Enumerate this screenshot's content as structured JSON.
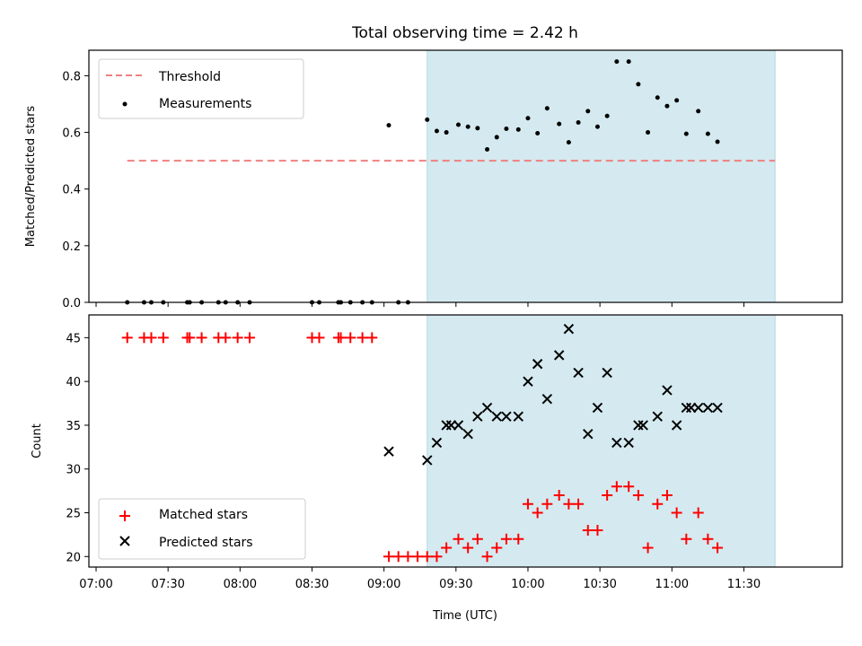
{
  "chart_data": [
    {
      "type": "scatter",
      "title": "Total observing time = 2.42 h",
      "ylabel": "Matched/Predicted stars",
      "xlabel": "",
      "ylim": [
        0,
        0.89
      ],
      "yticks": [
        "0.0",
        "0.2",
        "0.4",
        "0.6",
        "0.8"
      ],
      "observing_window": [
        "09:18",
        "11:43"
      ],
      "highlight_color": "#d4eaf0",
      "legend_position": "upper-left",
      "threshold": {
        "name": "Threshold",
        "value": 0.5,
        "x_range": [
          "07:13",
          "11:43"
        ],
        "color": "#f08080"
      },
      "series": [
        {
          "name": "Measurements",
          "color": "#000000",
          "marker": "dot",
          "points": [
            [
              "07:13",
              0.0
            ],
            [
              "07:20",
              0.0
            ],
            [
              "07:23",
              0.0
            ],
            [
              "07:28",
              0.0
            ],
            [
              "07:38",
              0.0
            ],
            [
              "07:39",
              0.0
            ],
            [
              "07:44",
              0.0
            ],
            [
              "07:51",
              0.0
            ],
            [
              "07:54",
              0.0
            ],
            [
              "07:59",
              0.0
            ],
            [
              "08:04",
              0.0
            ],
            [
              "08:30",
              0.0
            ],
            [
              "08:33",
              0.0
            ],
            [
              "08:41",
              0.0
            ],
            [
              "08:42",
              0.0
            ],
            [
              "08:46",
              0.0
            ],
            [
              "08:51",
              0.0
            ],
            [
              "08:55",
              0.0
            ],
            [
              "09:02",
              0.625
            ],
            [
              "09:06",
              0.0
            ],
            [
              "09:10",
              0.0
            ],
            [
              "09:18",
              0.645
            ],
            [
              "09:22",
              0.605
            ],
            [
              "09:26",
              0.6
            ],
            [
              "09:31",
              0.627
            ],
            [
              "09:35",
              0.62
            ],
            [
              "09:39",
              0.615
            ],
            [
              "09:43",
              0.54
            ],
            [
              "09:47",
              0.583
            ],
            [
              "09:51",
              0.613
            ],
            [
              "09:56",
              0.61
            ],
            [
              "10:00",
              0.65
            ],
            [
              "10:04",
              0.597
            ],
            [
              "10:08",
              0.685
            ],
            [
              "10:13",
              0.63
            ],
            [
              "10:17",
              0.565
            ],
            [
              "10:21",
              0.635
            ],
            [
              "10:25",
              0.675
            ],
            [
              "10:29",
              0.62
            ],
            [
              "10:33",
              0.658
            ],
            [
              "10:37",
              0.85
            ],
            [
              "10:42",
              0.85
            ],
            [
              "10:46",
              0.77
            ],
            [
              "10:50",
              0.6
            ],
            [
              "10:54",
              0.723
            ],
            [
              "10:58",
              0.693
            ],
            [
              "11:02",
              0.713
            ],
            [
              "11:06",
              0.595
            ],
            [
              "11:11",
              0.675
            ],
            [
              "11:15",
              0.595
            ],
            [
              "11:19",
              0.567
            ]
          ]
        }
      ]
    },
    {
      "type": "scatter",
      "title": "",
      "ylabel": "Count",
      "xlabel": "Time (UTC)",
      "ylim": [
        18.8,
        47.6
      ],
      "yticks": [
        "20",
        "25",
        "30",
        "35",
        "40",
        "45"
      ],
      "xticks": [
        "07:00",
        "07:30",
        "08:00",
        "08:30",
        "09:00",
        "09:30",
        "10:00",
        "10:30",
        "11:00",
        "11:30"
      ],
      "observing_window": [
        "09:18",
        "11:43"
      ],
      "highlight_color": "#d4eaf0",
      "legend_position": "lower-left",
      "series": [
        {
          "name": "Matched stars",
          "color": "#ff0000",
          "marker": "plus",
          "points": [
            [
              "07:13",
              45
            ],
            [
              "07:20",
              45
            ],
            [
              "07:23",
              45
            ],
            [
              "07:28",
              45
            ],
            [
              "07:38",
              45
            ],
            [
              "07:39",
              45
            ],
            [
              "07:44",
              45
            ],
            [
              "07:51",
              45
            ],
            [
              "07:54",
              45
            ],
            [
              "07:59",
              45
            ],
            [
              "08:04",
              45
            ],
            [
              "08:30",
              45
            ],
            [
              "08:33",
              45
            ],
            [
              "08:41",
              45
            ],
            [
              "08:42",
              45
            ],
            [
              "08:46",
              45
            ],
            [
              "08:51",
              45
            ],
            [
              "08:55",
              45
            ],
            [
              "09:02",
              20
            ],
            [
              "09:06",
              20
            ],
            [
              "09:10",
              20
            ],
            [
              "09:14",
              20
            ],
            [
              "09:18",
              20
            ],
            [
              "09:22",
              20
            ],
            [
              "09:26",
              21
            ],
            [
              "09:31",
              22
            ],
            [
              "09:35",
              21
            ],
            [
              "09:39",
              22
            ],
            [
              "09:43",
              20
            ],
            [
              "09:47",
              21
            ],
            [
              "09:51",
              22
            ],
            [
              "09:56",
              22
            ],
            [
              "10:00",
              26
            ],
            [
              "10:04",
              25
            ],
            [
              "10:08",
              26
            ],
            [
              "10:13",
              27
            ],
            [
              "10:17",
              26
            ],
            [
              "10:21",
              26
            ],
            [
              "10:25",
              23
            ],
            [
              "10:29",
              23
            ],
            [
              "10:33",
              27
            ],
            [
              "10:37",
              28
            ],
            [
              "10:42",
              28
            ],
            [
              "10:46",
              27
            ],
            [
              "10:50",
              21
            ],
            [
              "10:54",
              26
            ],
            [
              "10:58",
              27
            ],
            [
              "11:02",
              25
            ],
            [
              "11:06",
              22
            ],
            [
              "11:11",
              25
            ],
            [
              "11:15",
              22
            ],
            [
              "11:19",
              21
            ]
          ]
        },
        {
          "name": "Predicted stars",
          "color": "#000000",
          "marker": "x",
          "points": [
            [
              "09:02",
              32
            ],
            [
              "09:18",
              31
            ],
            [
              "09:22",
              33
            ],
            [
              "09:26",
              35
            ],
            [
              "09:28",
              35
            ],
            [
              "09:31",
              35
            ],
            [
              "09:35",
              34
            ],
            [
              "09:39",
              36
            ],
            [
              "09:43",
              37
            ],
            [
              "09:47",
              36
            ],
            [
              "09:51",
              36
            ],
            [
              "09:56",
              36
            ],
            [
              "10:00",
              40
            ],
            [
              "10:04",
              42
            ],
            [
              "10:08",
              38
            ],
            [
              "10:13",
              43
            ],
            [
              "10:17",
              46
            ],
            [
              "10:21",
              41
            ],
            [
              "10:25",
              34
            ],
            [
              "10:29",
              37
            ],
            [
              "10:33",
              41
            ],
            [
              "10:37",
              33
            ],
            [
              "10:42",
              33
            ],
            [
              "10:46",
              35
            ],
            [
              "10:48",
              35
            ],
            [
              "10:54",
              36
            ],
            [
              "10:58",
              39
            ],
            [
              "11:02",
              35
            ],
            [
              "11:06",
              37
            ],
            [
              "11:08",
              37
            ],
            [
              "11:11",
              37
            ],
            [
              "11:15",
              37
            ],
            [
              "11:19",
              37
            ]
          ]
        }
      ]
    }
  ]
}
